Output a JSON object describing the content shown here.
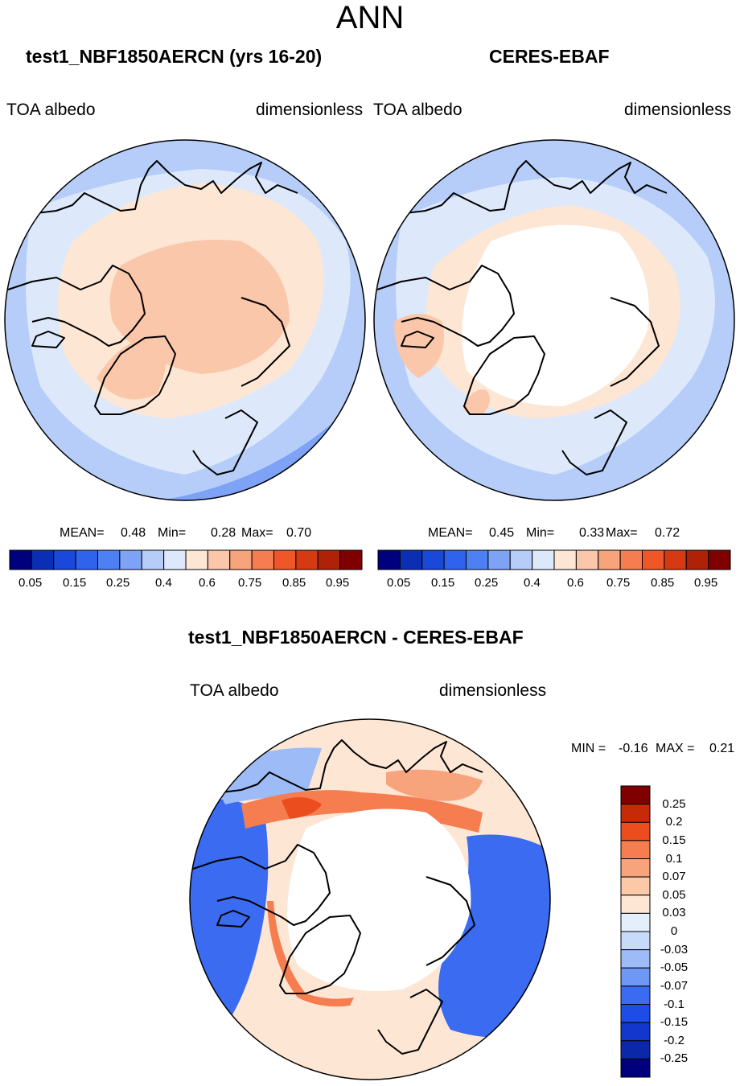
{
  "figure": {
    "season": "ANN"
  },
  "colors": {
    "abs_palette": [
      "#00007f",
      "#0a2fb5",
      "#1a48d8",
      "#2f63ee",
      "#4d80f2",
      "#7ea3f6",
      "#b5cdf8",
      "#dde9fb",
      "#fde6d4",
      "#fbc7aa",
      "#f7a47c",
      "#f57d50",
      "#ef5628",
      "#d63a12",
      "#b02208",
      "#800000"
    ],
    "diff_palette": [
      "#00007f",
      "#0a28a8",
      "#1336cc",
      "#1e4de6",
      "#3a6bf0",
      "#6f97f4",
      "#9dbbf6",
      "#c6dbf9",
      "#e4effc",
      "#fde6d4",
      "#fbc9a8",
      "#f7a47c",
      "#f57d50",
      "#ec4d1f",
      "#c72a08",
      "#800000"
    ],
    "land_outline": "#000000"
  },
  "chart_data": [
    {
      "type": "heatmap",
      "name": "model",
      "title": "test1_NBF1850AERCN (yrs 16-20)",
      "variable": "TOA albedo",
      "units": "dimensionless",
      "stats": {
        "mean_label": "MEAN=",
        "mean": "0.48",
        "min_label": "Min=",
        "min": "0.28",
        "max_label": "Max=",
        "max": "0.70"
      },
      "colorbar": {
        "orientation": "horizontal",
        "tick_labels": [
          "0.05",
          "0.15",
          "0.25",
          "0.4",
          "0.6",
          "0.75",
          "0.85",
          "0.95"
        ]
      }
    },
    {
      "type": "heatmap",
      "name": "obs",
      "title": "CERES-EBAF",
      "variable": "TOA albedo",
      "units": "dimensionless",
      "stats": {
        "mean_label": "MEAN=",
        "mean": "0.45",
        "min_label": "Min=",
        "min": "0.33",
        "max_label": "Max=",
        "max": "0.72"
      },
      "colorbar": {
        "orientation": "horizontal",
        "tick_labels": [
          "0.05",
          "0.15",
          "0.25",
          "0.4",
          "0.6",
          "0.75",
          "0.85",
          "0.95"
        ]
      }
    },
    {
      "type": "heatmap",
      "name": "difference",
      "title": "test1_NBF1850AERCN - CERES-EBAF",
      "variable": "TOA albedo",
      "units": "dimensionless",
      "stats": {
        "min_label": "MIN =",
        "min": "-0.16",
        "max_label": "MAX =",
        "max": "0.21"
      },
      "colorbar": {
        "orientation": "vertical",
        "tick_labels": [
          "0.25",
          "0.2",
          "0.15",
          "0.1",
          "0.07",
          "0.05",
          "0.03",
          "0",
          "-0.03",
          "-0.05",
          "-0.07",
          "-0.1",
          "-0.15",
          "-0.2",
          "-0.25"
        ]
      }
    }
  ]
}
